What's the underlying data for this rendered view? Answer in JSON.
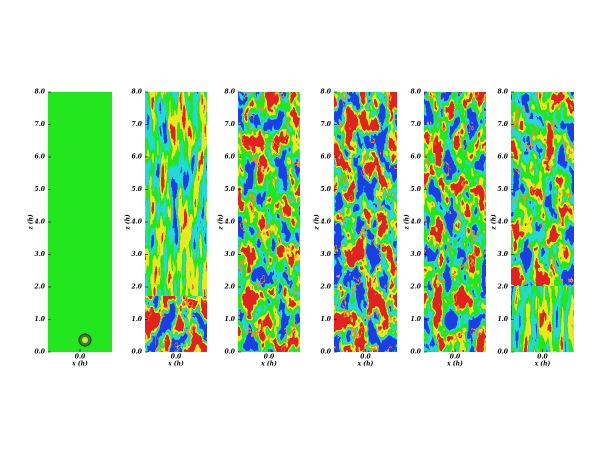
{
  "panels": [
    {
      "ylabel": "z (h)",
      "xlabel": "x (h)",
      "ylim": [
        0,
        8
      ],
      "xtick": {
        "value": 0,
        "label": "0.0"
      },
      "yticks": [
        {
          "value": 0,
          "label": "0.0"
        },
        {
          "value": 1,
          "label": "1.0"
        },
        {
          "value": 2,
          "label": "2.0"
        },
        {
          "value": 3,
          "label": "3.0"
        },
        {
          "value": 4,
          "label": "4.0"
        },
        {
          "value": 5,
          "label": "5.0"
        },
        {
          "value": 6,
          "label": "6.0"
        },
        {
          "value": 7,
          "label": "7.0"
        },
        {
          "value": 8,
          "label": "8.0"
        }
      ]
    },
    {
      "ylabel": "z (h)",
      "xlabel": "x (h)",
      "ylim": [
        0,
        8
      ],
      "xtick": {
        "value": 0,
        "label": "0.0"
      },
      "yticks": [
        {
          "value": 0,
          "label": "0.0"
        },
        {
          "value": 1,
          "label": "1.0"
        },
        {
          "value": 2,
          "label": "2.0"
        },
        {
          "value": 3,
          "label": "3.0"
        },
        {
          "value": 4,
          "label": "4.0"
        },
        {
          "value": 5,
          "label": "5.0"
        },
        {
          "value": 6,
          "label": "6.0"
        },
        {
          "value": 7,
          "label": "7.0"
        },
        {
          "value": 8,
          "label": "8.0"
        }
      ]
    },
    {
      "ylabel": "z (h)",
      "xlabel": "x (h)",
      "ylim": [
        0,
        8
      ],
      "xtick": {
        "value": 0,
        "label": "0.0"
      },
      "yticks": [
        {
          "value": 0,
          "label": "0.0"
        },
        {
          "value": 1,
          "label": "1.0"
        },
        {
          "value": 2,
          "label": "2.0"
        },
        {
          "value": 3,
          "label": "3.0"
        },
        {
          "value": 4,
          "label": "4.0"
        },
        {
          "value": 5,
          "label": "5.0"
        },
        {
          "value": 6,
          "label": "6.0"
        },
        {
          "value": 7,
          "label": "7.0"
        },
        {
          "value": 8,
          "label": "8.0"
        }
      ]
    },
    {
      "ylabel": "z (h)",
      "xlabel": "x (h)",
      "ylim": [
        0,
        8
      ],
      "xtick": {
        "value": 0,
        "label": "0.0"
      },
      "yticks": [
        {
          "value": 0,
          "label": "0.0"
        },
        {
          "value": 1,
          "label": "1.0"
        },
        {
          "value": 2,
          "label": "2.0"
        },
        {
          "value": 3,
          "label": "3.0"
        },
        {
          "value": 4,
          "label": "4.0"
        },
        {
          "value": 5,
          "label": "5.0"
        },
        {
          "value": 6,
          "label": "6.0"
        },
        {
          "value": 7,
          "label": "7.0"
        },
        {
          "value": 8,
          "label": "8.0"
        }
      ]
    },
    {
      "ylabel": "z (h)",
      "xlabel": "x (h)",
      "ylim": [
        0,
        8
      ],
      "xtick": {
        "value": 0,
        "label": "0.0"
      },
      "yticks": [
        {
          "value": 0,
          "label": "0.0"
        },
        {
          "value": 1,
          "label": "1.0"
        },
        {
          "value": 2,
          "label": "2.0"
        },
        {
          "value": 3,
          "label": "3.0"
        },
        {
          "value": 4,
          "label": "4.0"
        },
        {
          "value": 5,
          "label": "5.0"
        },
        {
          "value": 6,
          "label": "6.0"
        },
        {
          "value": 7,
          "label": "7.0"
        },
        {
          "value": 8,
          "label": "8.0"
        }
      ]
    },
    {
      "ylabel": "z (h)",
      "xlabel": "x (h)",
      "ylim": [
        0,
        8
      ],
      "xtick": {
        "value": 0,
        "label": "0.0"
      },
      "yticks": [
        {
          "value": 0,
          "label": "0.0"
        },
        {
          "value": 1,
          "label": "1.0"
        },
        {
          "value": 2,
          "label": "2.0"
        },
        {
          "value": 3,
          "label": "3.0"
        },
        {
          "value": 4,
          "label": "4.0"
        },
        {
          "value": 5,
          "label": "5.0"
        },
        {
          "value": 6,
          "label": "6.0"
        },
        {
          "value": 7,
          "label": "7.0"
        },
        {
          "value": 8,
          "label": "8.0"
        }
      ]
    }
  ]
}
